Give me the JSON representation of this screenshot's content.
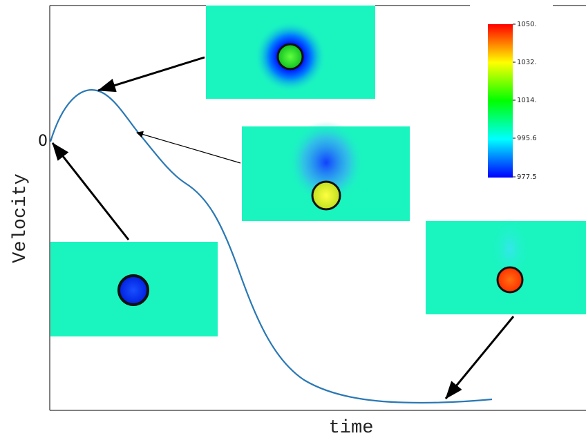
{
  "axes": {
    "y_label": "Velocity",
    "x_label": "time",
    "origin_label": "0"
  },
  "colorbar": {
    "ticks": [
      "1050.",
      "1032.",
      "1014.",
      "995.6",
      "977.5"
    ]
  }
}
